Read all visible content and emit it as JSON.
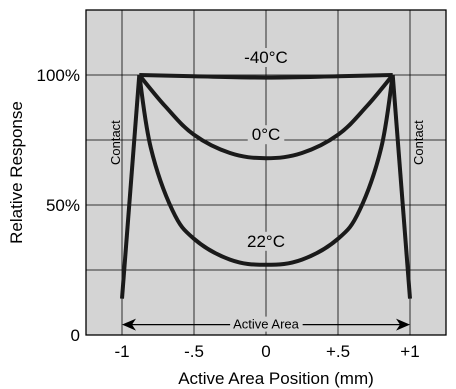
{
  "chart_data": {
    "type": "line",
    "xlabel": "Active Area Position (mm)",
    "ylabel": "Relative Response",
    "xlim": [
      -1.25,
      1.25
    ],
    "ylim": [
      0,
      1.25
    ],
    "x_ticks": [
      {
        "value": -1,
        "label": "-1"
      },
      {
        "value": -0.5,
        "label": "-.5"
      },
      {
        "value": 0,
        "label": "0"
      },
      {
        "value": 0.5,
        "label": "+.5"
      },
      {
        "value": 1,
        "label": "+1"
      }
    ],
    "y_ticks": [
      {
        "value": 0,
        "label": "0"
      },
      {
        "value": 0.5,
        "label": "50%"
      },
      {
        "value": 1.0,
        "label": "100%"
      }
    ],
    "grid": true,
    "background": "#d4d4d4",
    "line_color": "#1a1a1a",
    "series": [
      {
        "name": "-40°C",
        "x": [
          -0.88,
          -0.5,
          0,
          0.5,
          0.88
        ],
        "y": [
          1.0,
          0.995,
          0.99,
          0.995,
          1.0
        ]
      },
      {
        "name": "0°C",
        "x": [
          -0.88,
          -0.7,
          -0.5,
          -0.25,
          0,
          0.25,
          0.5,
          0.7,
          0.88
        ],
        "y": [
          1.0,
          0.88,
          0.77,
          0.7,
          0.68,
          0.7,
          0.77,
          0.88,
          1.0
        ]
      },
      {
        "name": "22°C",
        "x": [
          -0.88,
          -0.8,
          -0.65,
          -0.5,
          -0.25,
          0,
          0.25,
          0.5,
          0.65,
          0.8,
          0.88
        ],
        "y": [
          1.0,
          0.72,
          0.48,
          0.37,
          0.29,
          0.27,
          0.29,
          0.37,
          0.48,
          0.72,
          1.0
        ]
      },
      {
        "name": "Contact",
        "x": [
          -1.0,
          -0.88
        ],
        "y": [
          0.14,
          1.0
        ]
      },
      {
        "name": "Contact",
        "x": [
          0.88,
          1.0
        ],
        "y": [
          1.0,
          0.14
        ]
      }
    ],
    "annotations": {
      "contact_left": "Contact",
      "contact_right": "Contact",
      "active_area": "Active Area",
      "active_area_range": [
        -1.0,
        1.0
      ],
      "active_area_y": 0.04
    }
  }
}
